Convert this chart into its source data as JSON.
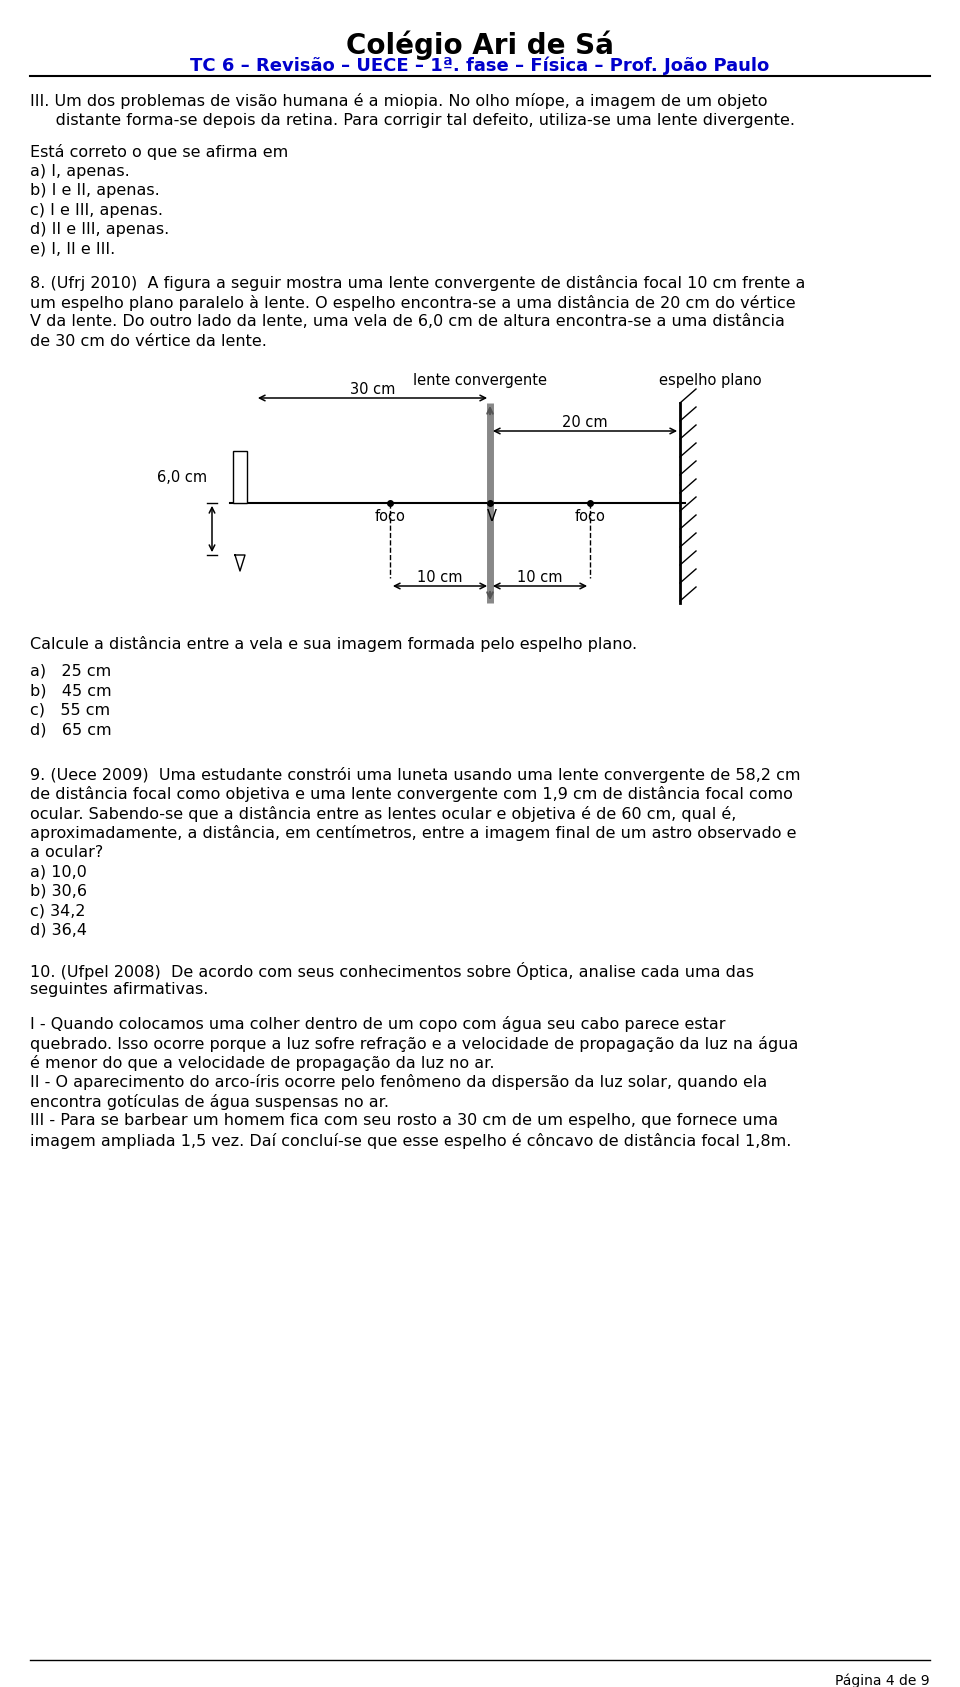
{
  "title": "Colégio Ari de Sá",
  "subtitle": "TC 6 – Revisão – UECE – 1ª. fase – Física – Prof. João Paulo",
  "title_color": "#000000",
  "subtitle_color": "#0000cc",
  "body_text_color": "#000000",
  "background_color": "#ffffff",
  "page_label": "Página 4 de 9",
  "q3_line1": "III. Um dos problemas de visão humana é a miopia. No olho míope, a imagem de um objeto",
  "q3_line2": "     distante forma-se depois da retina. Para corrigir tal defeito, utiliza-se uma lente divergente.",
  "q3_affirm0": "Está correto o que se afirma em",
  "q3_affirm1": "a) I, apenas.",
  "q3_affirm2": "b) I e II, apenas.",
  "q3_affirm3": "c) I e III, apenas.",
  "q3_affirm4": "d) II e III, apenas.",
  "q3_affirm5": "e) I, II e III.",
  "q8_line1": "8. (Ufrj 2010)  A figura a seguir mostra uma lente convergente de distância focal 10 cm frente a",
  "q8_line2": "um espelho plano paralelo à lente. O espelho encontra-se a uma distância de 20 cm do vértice",
  "q8_line3": "V da lente. Do outro lado da lente, uma vela de 6,0 cm de altura encontra-se a uma distância",
  "q8_line4": "de 30 cm do vértice da lente.",
  "lbl_lente": "lente convergente",
  "lbl_espelho": "espelho plano",
  "lbl_30cm": "30 cm",
  "lbl_20cm": "20 cm",
  "lbl_60cm": "6,0 cm",
  "lbl_foco_L": "foco",
  "lbl_V": "V",
  "lbl_foco_R": "foco",
  "lbl_10L": "10 cm",
  "lbl_10R": "10 cm",
  "q8_q": "Calcule a distância entre a vela e sua imagem formada pelo espelho plano.",
  "q8_a1": "a)   25 cm",
  "q8_a2": "b)   45 cm",
  "q8_a3": "c)   55 cm",
  "q8_a4": "d)   65 cm",
  "q9_line1": "9. (Uece 2009)  Uma estudante constrói uma luneta usando uma lente convergente de 58,2 cm",
  "q9_line2": "de distância focal como objetiva e uma lente convergente com 1,9 cm de distância focal como",
  "q9_line3": "ocular. Sabendo-se que a distância entre as lentes ocular e objetiva é de 60 cm, qual é,",
  "q9_line4": "aproximadamente, a distância, em centímetros, entre a imagem final de um astro observado e",
  "q9_line5": "a ocular?",
  "q9_a1": "a) 10,0",
  "q9_a2": "b) 30,6",
  "q9_a3": "c) 34,2",
  "q9_a4": "d) 36,4",
  "q10_line1": "10. (Ufpel 2008)  De acordo com seus conhecimentos sobre Óptica, analise cada uma das",
  "q10_line2": "seguintes afirmativas.",
  "q10_I1": "I - Quando colocamos uma colher dentro de um copo com água seu cabo parece estar",
  "q10_I2": "quebrado. Isso ocorre porque a luz sofre refração e a velocidade de propagação da luz na água",
  "q10_I3": "é menor do que a velocidade de propagação da luz no ar.",
  "q10_II1": "II - O aparecimento do arco-íris ocorre pelo fenômeno da dispersão da luz solar, quando ela",
  "q10_II2": "encontra gotículas de água suspensas no ar.",
  "q10_III1": "III - Para se barbear um homem fica com seu rosto a 30 cm de um espelho, que fornece uma",
  "q10_III2": "imagem ampliada 1,5 vez. Daí concluí-se que esse espelho é côncavo de distância focal 1,8m."
}
